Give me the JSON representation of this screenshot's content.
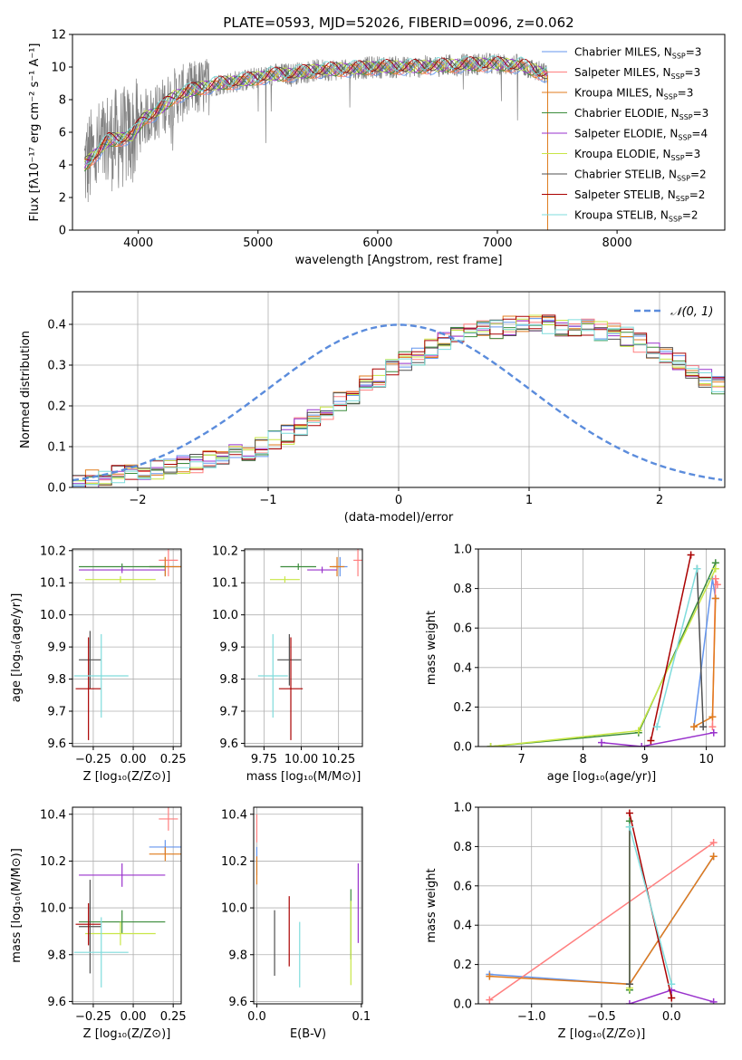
{
  "colors": {
    "chabrier_miles": "#6495ed",
    "salpeter_miles": "#ff7f7f",
    "kroupa_miles": "#e07b1c",
    "chabrier_elodie": "#3c8c3c",
    "salpeter_elodie": "#9932cc",
    "kroupa_elodie": "#c8e646",
    "chabrier_stelib": "#505050",
    "salpeter_stelib": "#aa0000",
    "kroupa_stelib": "#7fdcdc",
    "observed": "#808080",
    "gaussian": "#5b8cdc"
  },
  "chart_data": [
    {
      "id": "spectrum",
      "type": "line",
      "title": "PLATE=0593, MJD=52026, FIBERID=0096, z=0.062",
      "xlabel": "wavelength [Angstrom, rest frame]",
      "ylabel": "Flux [fλ10⁻¹⁷ erg cm⁻² s⁻¹ A⁻¹]",
      "xlim": [
        3450,
        8900
      ],
      "ylim": [
        0,
        12
      ],
      "xticks": [
        4000,
        5000,
        6000,
        7000,
        8000
      ],
      "yticks": [
        0,
        2,
        4,
        6,
        8,
        10,
        12
      ],
      "legend_position": "right",
      "series": [
        {
          "name": "Chabrier MILES, N_SSP=3",
          "color_key": "chabrier_miles"
        },
        {
          "name": "Salpeter MILES, N_SSP=3",
          "color_key": "salpeter_miles"
        },
        {
          "name": "Kroupa MILES, N_SSP=3",
          "color_key": "kroupa_miles"
        },
        {
          "name": "Chabrier ELODIE, N_SSP=3",
          "color_key": "chabrier_elodie"
        },
        {
          "name": "Salpeter ELODIE, N_SSP=4",
          "color_key": "salpeter_elodie"
        },
        {
          "name": "Kroupa ELODIE, N_SSP=3",
          "color_key": "kroupa_elodie"
        },
        {
          "name": "Chabrier STELIB, N_SSP=2",
          "color_key": "chabrier_stelib"
        },
        {
          "name": "Salpeter STELIB, N_SSP=2",
          "color_key": "salpeter_stelib"
        },
        {
          "name": "Kroupa STELIB, N_SSP=2",
          "color_key": "kroupa_stelib"
        }
      ],
      "continuum": {
        "x": [
          3550,
          3650,
          3750,
          3850,
          3950,
          4050,
          4150,
          4300,
          4500,
          4700,
          4900,
          5100,
          5300,
          5500,
          5800,
          6000,
          6300,
          6600,
          6900,
          7200,
          7420
        ],
        "y": [
          4.0,
          4.7,
          5.5,
          5.6,
          5.8,
          6.9,
          7.2,
          8.2,
          8.7,
          9.0,
          9.2,
          9.5,
          9.6,
          9.8,
          9.9,
          10.0,
          10.0,
          10.1,
          10.2,
          10.1,
          9.5
        ]
      },
      "observed_range": [
        3550,
        7420
      ]
    },
    {
      "id": "residuals",
      "type": "histogram",
      "xlabel": "(data-model)/error",
      "ylabel": "Normed distribution",
      "xlim": [
        -2.5,
        2.5
      ],
      "ylim": [
        0,
        0.48
      ],
      "xticks": [
        -2,
        -1,
        0,
        1,
        2
      ],
      "yticks": [
        0.0,
        0.1,
        0.2,
        0.3,
        0.4
      ],
      "legend_label": "𝒩(0, 1)",
      "legend_position": "top-right",
      "bin_width": 0.1,
      "series_base": [
        0.015,
        0.02,
        0.025,
        0.03,
        0.035,
        0.04,
        0.045,
        0.05,
        0.055,
        0.06,
        0.065,
        0.07,
        0.08,
        0.09,
        0.1,
        0.115,
        0.13,
        0.15,
        0.17,
        0.19,
        0.21,
        0.23,
        0.25,
        0.27,
        0.29,
        0.31,
        0.325,
        0.34,
        0.355,
        0.37,
        0.38,
        0.385,
        0.39,
        0.395,
        0.4,
        0.4,
        0.4,
        0.395,
        0.395,
        0.39,
        0.385,
        0.38,
        0.37,
        0.355,
        0.34,
        0.325,
        0.31,
        0.29,
        0.27,
        0.25,
        0.23,
        0.21,
        0.19,
        0.17,
        0.15,
        0.13,
        0.115,
        0.1,
        0.09,
        0.08,
        0.07,
        0.065,
        0.055,
        0.05,
        0.045,
        0.04,
        0.035,
        0.03,
        0.025,
        0.02
      ]
    },
    {
      "id": "age_vs_z",
      "type": "scatter",
      "xlabel": "Z [log₁₀(Z/Z⊙)]",
      "ylabel": "age  [log₁₀(age/yr)]",
      "xlim": [
        -0.38,
        0.3
      ],
      "ylim": [
        9.59,
        10.205
      ],
      "xticks": [
        -0.25,
        0.0,
        0.25
      ],
      "yticks": [
        9.6,
        9.7,
        9.8,
        9.9,
        10.0,
        10.1,
        10.2
      ],
      "points": [
        {
          "key": "chabrier_miles",
          "x": 0.2,
          "y": 10.15,
          "ex": 0.1,
          "ey": 0.03
        },
        {
          "key": "salpeter_miles",
          "x": 0.22,
          "y": 10.17,
          "ex": 0.06,
          "ey": 0.05
        },
        {
          "key": "kroupa_miles",
          "x": 0.2,
          "y": 10.15,
          "ex": 0.1,
          "ey": 0.03
        },
        {
          "key": "chabrier_elodie",
          "x": -0.07,
          "y": 10.15,
          "ex": 0.27,
          "ey": 0.01
        },
        {
          "key": "salpeter_elodie",
          "x": -0.07,
          "y": 10.14,
          "ex": 0.27,
          "ey": 0.01
        },
        {
          "key": "kroupa_elodie",
          "x": -0.08,
          "y": 10.11,
          "ex": 0.22,
          "ey": 0.01
        },
        {
          "key": "chabrier_stelib",
          "x": -0.27,
          "y": 9.86,
          "ex": 0.07,
          "ey": 0.09
        },
        {
          "key": "salpeter_stelib",
          "x": -0.28,
          "y": 9.77,
          "ex": 0.08,
          "ey": 0.16
        },
        {
          "key": "kroupa_stelib",
          "x": -0.2,
          "y": 9.81,
          "ex": 0.17,
          "ey": 0.13
        }
      ]
    },
    {
      "id": "age_vs_mass",
      "type": "scatter",
      "xlabel": "mass [log₁₀(M/M⊙)]",
      "ylabel": "",
      "xlim": [
        9.62,
        10.41
      ],
      "ylim": [
        9.59,
        10.205
      ],
      "xticks": [
        9.75,
        10.0,
        10.25
      ],
      "yticks": [
        9.6,
        9.7,
        9.8,
        9.9,
        10.0,
        10.1,
        10.2
      ],
      "points": [
        {
          "key": "chabrier_miles",
          "x": 10.26,
          "y": 10.15,
          "ex": 0.05,
          "ey": 0.03
        },
        {
          "key": "salpeter_miles",
          "x": 10.38,
          "y": 10.17,
          "ex": 0.03,
          "ey": 0.05
        },
        {
          "key": "kroupa_miles",
          "x": 10.24,
          "y": 10.15,
          "ex": 0.05,
          "ey": 0.03
        },
        {
          "key": "chabrier_elodie",
          "x": 9.98,
          "y": 10.15,
          "ex": 0.12,
          "ey": 0.01
        },
        {
          "key": "salpeter_elodie",
          "x": 10.14,
          "y": 10.14,
          "ex": 0.1,
          "ey": 0.01
        },
        {
          "key": "kroupa_elodie",
          "x": 9.89,
          "y": 10.11,
          "ex": 0.1,
          "ey": 0.01
        },
        {
          "key": "chabrier_stelib",
          "x": 9.92,
          "y": 9.86,
          "ex": 0.08,
          "ey": 0.08
        },
        {
          "key": "salpeter_stelib",
          "x": 9.93,
          "y": 9.77,
          "ex": 0.08,
          "ey": 0.16
        },
        {
          "key": "kroupa_stelib",
          "x": 9.81,
          "y": 9.81,
          "ex": 0.1,
          "ey": 0.13
        }
      ]
    },
    {
      "id": "weight_vs_age",
      "type": "line",
      "xlabel": "age  [log₁₀(age/yr)]",
      "ylabel": "mass weight",
      "xlim": [
        6.3,
        10.3
      ],
      "ylim": [
        0,
        1.0
      ],
      "xticks": [
        7,
        8,
        9,
        10
      ],
      "yticks": [
        0.0,
        0.2,
        0.4,
        0.6,
        0.8,
        1.0
      ],
      "series": [
        {
          "key": "chabrier_miles",
          "x": [
            9.8,
            10.1,
            10.15
          ],
          "y": [
            0.1,
            0.85,
            0.75
          ]
        },
        {
          "key": "salpeter_miles",
          "x": [
            10.1,
            10.15,
            10.18
          ],
          "y": [
            0.1,
            0.85,
            0.82
          ]
        },
        {
          "key": "kroupa_miles",
          "x": [
            9.8,
            10.1,
            10.15
          ],
          "y": [
            0.1,
            0.15,
            0.75
          ]
        },
        {
          "key": "chabrier_elodie",
          "x": [
            6.5,
            8.9,
            10.15
          ],
          "y": [
            0.0,
            0.07,
            0.93
          ]
        },
        {
          "key": "salpeter_elodie",
          "x": [
            8.3,
            8.95,
            10.12
          ],
          "y": [
            0.02,
            0.0,
            0.07
          ]
        },
        {
          "key": "kroupa_elodie",
          "x": [
            6.5,
            8.9,
            10.15
          ],
          "y": [
            0.0,
            0.08,
            0.9
          ]
        },
        {
          "key": "chabrier_stelib",
          "x": [
            9.85,
            9.95
          ],
          "y": [
            0.9,
            0.1
          ]
        },
        {
          "key": "salpeter_stelib",
          "x": [
            9.1,
            9.75
          ],
          "y": [
            0.03,
            0.97
          ]
        },
        {
          "key": "kroupa_stelib",
          "x": [
            9.2,
            9.85
          ],
          "y": [
            0.1,
            0.9
          ]
        }
      ]
    },
    {
      "id": "mass_vs_z",
      "type": "scatter",
      "xlabel": "Z [log₁₀(Z/Z⊙)]",
      "ylabel": "mass [log₁₀(M/M⊙)]",
      "xlim": [
        -0.38,
        0.3
      ],
      "ylim": [
        9.59,
        10.43
      ],
      "xticks": [
        -0.25,
        0.0,
        0.25
      ],
      "yticks": [
        9.6,
        9.8,
        10.0,
        10.2,
        10.4
      ],
      "points": [
        {
          "key": "chabrier_miles",
          "x": 0.2,
          "y": 10.26,
          "ex": 0.1,
          "ey": 0.03
        },
        {
          "key": "salpeter_miles",
          "x": 0.22,
          "y": 10.38,
          "ex": 0.06,
          "ey": 0.05
        },
        {
          "key": "kroupa_miles",
          "x": 0.2,
          "y": 10.23,
          "ex": 0.1,
          "ey": 0.03
        },
        {
          "key": "chabrier_elodie",
          "x": -0.07,
          "y": 9.94,
          "ex": 0.27,
          "ey": 0.05
        },
        {
          "key": "salpeter_elodie",
          "x": -0.07,
          "y": 10.14,
          "ex": 0.27,
          "ey": 0.05
        },
        {
          "key": "kroupa_elodie",
          "x": -0.08,
          "y": 9.89,
          "ex": 0.22,
          "ey": 0.05
        },
        {
          "key": "chabrier_stelib",
          "x": -0.27,
          "y": 9.92,
          "ex": 0.07,
          "ey": 0.2
        },
        {
          "key": "salpeter_stelib",
          "x": -0.28,
          "y": 9.93,
          "ex": 0.08,
          "ey": 0.09
        },
        {
          "key": "kroupa_stelib",
          "x": -0.2,
          "y": 9.81,
          "ex": 0.17,
          "ey": 0.15
        }
      ]
    },
    {
      "id": "mass_vs_ebv",
      "type": "scatter",
      "xlabel": "E(B-V)",
      "ylabel": "",
      "xlim": [
        -0.003,
        0.101
      ],
      "ylim": [
        9.59,
        10.43
      ],
      "xticks": [
        0.0,
        0.1
      ],
      "yticks": [
        9.6,
        9.8,
        10.0,
        10.2,
        10.4
      ],
      "points": [
        {
          "key": "chabrier_miles",
          "x": 0.0,
          "y": 10.2,
          "ex": 0,
          "ey": 0.06
        },
        {
          "key": "salpeter_miles",
          "x": 0.0,
          "y": 10.34,
          "ex": 0,
          "ey": 0.06
        },
        {
          "key": "kroupa_miles",
          "x": 0.0,
          "y": 10.16,
          "ex": 0,
          "ey": 0.06
        },
        {
          "key": "chabrier_elodie",
          "x": 0.09,
          "y": 9.93,
          "ex": 0,
          "ey": 0.15
        },
        {
          "key": "salpeter_elodie",
          "x": 0.097,
          "y": 10.02,
          "ex": 0,
          "ey": 0.17
        },
        {
          "key": "kroupa_elodie",
          "x": 0.09,
          "y": 9.85,
          "ex": 0,
          "ey": 0.18
        },
        {
          "key": "chabrier_stelib",
          "x": 0.017,
          "y": 9.85,
          "ex": 0,
          "ey": 0.14
        },
        {
          "key": "salpeter_stelib",
          "x": 0.031,
          "y": 9.9,
          "ex": 0,
          "ey": 0.15
        },
        {
          "key": "kroupa_stelib",
          "x": 0.041,
          "y": 9.8,
          "ex": 0,
          "ey": 0.14
        }
      ]
    },
    {
      "id": "weight_vs_z",
      "type": "line",
      "xlabel": "Z [log₁₀(Z/Z⊙)]",
      "ylabel": "mass weight",
      "xlim": [
        -1.38,
        0.38
      ],
      "ylim": [
        0,
        1.0
      ],
      "xticks": [
        -1.0,
        -0.5,
        0.0
      ],
      "yticks": [
        0.0,
        0.2,
        0.4,
        0.6,
        0.8,
        1.0
      ],
      "series": [
        {
          "key": "chabrier_miles",
          "x": [
            -1.3,
            -0.3,
            0.3
          ],
          "y": [
            0.15,
            0.1,
            0.75
          ]
        },
        {
          "key": "salpeter_miles",
          "x": [
            -1.3,
            0.3
          ],
          "y": [
            0.02,
            0.82
          ]
        },
        {
          "key": "kroupa_miles",
          "x": [
            -1.3,
            -0.3,
            0.3
          ],
          "y": [
            0.14,
            0.1,
            0.75
          ]
        },
        {
          "key": "chabrier_elodie",
          "x": [
            -0.3,
            -0.3
          ],
          "y": [
            0.07,
            0.93
          ]
        },
        {
          "key": "salpeter_elodie",
          "x": [
            -0.3,
            0.0,
            0.3
          ],
          "y": [
            0.0,
            0.07,
            0.01
          ]
        },
        {
          "key": "kroupa_elodie",
          "x": [
            -0.3,
            -0.3
          ],
          "y": [
            0.08,
            0.9
          ]
        },
        {
          "key": "chabrier_stelib",
          "x": [
            -0.3,
            -0.3
          ],
          "y": [
            0.1,
            0.9
          ]
        },
        {
          "key": "salpeter_stelib",
          "x": [
            -0.3,
            0.0
          ],
          "y": [
            0.97,
            0.03
          ]
        },
        {
          "key": "kroupa_stelib",
          "x": [
            -0.3,
            0.0
          ],
          "y": [
            0.9,
            0.1
          ]
        }
      ]
    }
  ]
}
